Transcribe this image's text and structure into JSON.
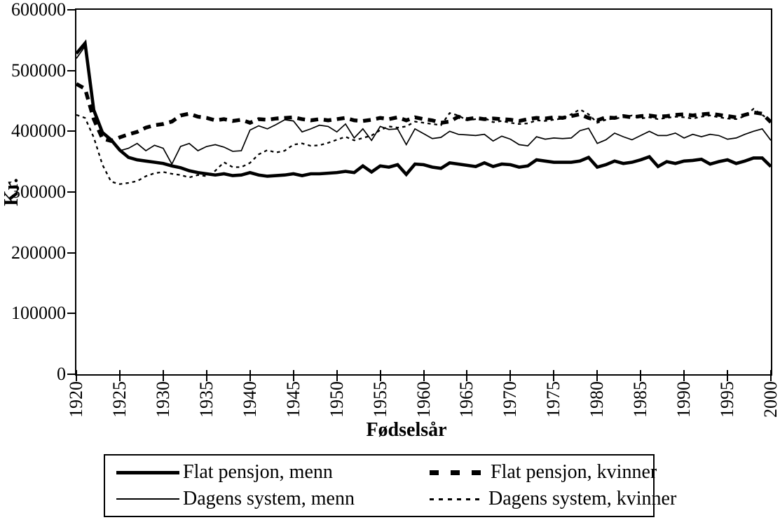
{
  "page": {
    "background": "#ffffff",
    "foreground": "#000000"
  },
  "chart_data": {
    "type": "line",
    "title": "",
    "xlabel": "Fødselsår",
    "ylabel": "Kr.",
    "x_range": [
      1920,
      2000
    ],
    "x_step": 1,
    "y_range": [
      0,
      600000
    ],
    "x_ticks": [
      1920,
      1925,
      1930,
      1935,
      1940,
      1945,
      1950,
      1955,
      1960,
      1965,
      1970,
      1975,
      1980,
      1985,
      1990,
      1995,
      2000
    ],
    "y_ticks": [
      0,
      100000,
      200000,
      300000,
      400000,
      500000,
      600000
    ],
    "grid": false,
    "legend_position": "bottom",
    "series": [
      {
        "name": "Flat pensjon, menn",
        "style": "thick-solid",
        "values": [
          528000,
          545000,
          435000,
          398000,
          386000,
          369000,
          357000,
          353000,
          351000,
          349000,
          347000,
          343000,
          340000,
          335000,
          332000,
          330000,
          328000,
          330000,
          327000,
          328000,
          332000,
          328000,
          326000,
          327000,
          328000,
          330000,
          327000,
          330000,
          330000,
          331000,
          332000,
          334000,
          332000,
          343000,
          333000,
          343000,
          341000,
          345000,
          329000,
          346000,
          345000,
          341000,
          339000,
          348000,
          346000,
          344000,
          342000,
          348000,
          342000,
          346000,
          345000,
          341000,
          343000,
          353000,
          351000,
          349000,
          349000,
          349000,
          351000,
          357000,
          341000,
          345000,
          351000,
          347000,
          349000,
          353000,
          358000,
          342000,
          350000,
          347000,
          351000,
          352000,
          354000,
          346000,
          350000,
          353000,
          347000,
          351000,
          356000,
          356000,
          342000
        ]
      },
      {
        "name": "Flat pensjon, kvinner",
        "style": "thick-dashed",
        "values": [
          478000,
          470000,
          420000,
          388000,
          384000,
          390000,
          395000,
          399000,
          406000,
          410000,
          412000,
          416000,
          426000,
          429000,
          424000,
          422000,
          418000,
          420000,
          417000,
          419000,
          414000,
          420000,
          419000,
          421000,
          422000,
          423000,
          420000,
          418000,
          420000,
          418000,
          420000,
          422000,
          418000,
          417000,
          419000,
          422000,
          420000,
          423000,
          418000,
          423000,
          420000,
          418000,
          414000,
          416000,
          424000,
          420000,
          422000,
          420000,
          421000,
          420000,
          419000,
          417000,
          420000,
          422000,
          421000,
          423000,
          422000,
          425000,
          428000,
          422000,
          418000,
          423000,
          422000,
          425000,
          423000,
          425000,
          426000,
          424000,
          425000,
          427000,
          428000,
          426000,
          428000,
          429000,
          427000,
          425000,
          423000,
          427000,
          431000,
          429000,
          415000
        ]
      },
      {
        "name": "Dagens system, menn",
        "style": "thin-solid",
        "values": [
          520000,
          540000,
          432000,
          396000,
          384000,
          368000,
          372000,
          380000,
          368000,
          377000,
          372000,
          346000,
          375000,
          380000,
          368000,
          375000,
          378000,
          374000,
          367000,
          368000,
          402000,
          409000,
          404000,
          411000,
          419000,
          417000,
          399000,
          404000,
          410000,
          408000,
          399000,
          412000,
          389000,
          404000,
          385000,
          408000,
          403000,
          404000,
          378000,
          404000,
          396000,
          388000,
          390000,
          400000,
          395000,
          394000,
          393000,
          395000,
          384000,
          392000,
          387000,
          378000,
          376000,
          391000,
          387000,
          389000,
          388000,
          389000,
          401000,
          405000,
          380000,
          386000,
          397000,
          391000,
          386000,
          393000,
          400000,
          393000,
          393000,
          397000,
          389000,
          395000,
          391000,
          395000,
          393000,
          387000,
          389000,
          395000,
          400000,
          404000,
          385000
        ]
      },
      {
        "name": "Dagens system, kvinner",
        "style": "dotted",
        "values": [
          427000,
          422000,
          390000,
          345000,
          317000,
          313000,
          315000,
          318000,
          326000,
          331000,
          333000,
          330000,
          328000,
          324000,
          328000,
          326000,
          335000,
          349000,
          341000,
          341000,
          348000,
          362000,
          369000,
          365000,
          368000,
          378000,
          380000,
          376000,
          377000,
          381000,
          386000,
          391000,
          385000,
          389000,
          393000,
          402000,
          408000,
          406000,
          408000,
          416000,
          414000,
          412000,
          410000,
          430000,
          426000,
          418000,
          420000,
          422000,
          415000,
          417000,
          414000,
          412000,
          413000,
          418000,
          417000,
          419000,
          421000,
          428000,
          436000,
          428000,
          414000,
          419000,
          421000,
          423000,
          426000,
          421000,
          423000,
          420000,
          422000,
          424000,
          423000,
          421000,
          424000,
          426000,
          423000,
          421000,
          420000,
          425000,
          437000,
          427000,
          417000
        ]
      }
    ]
  }
}
